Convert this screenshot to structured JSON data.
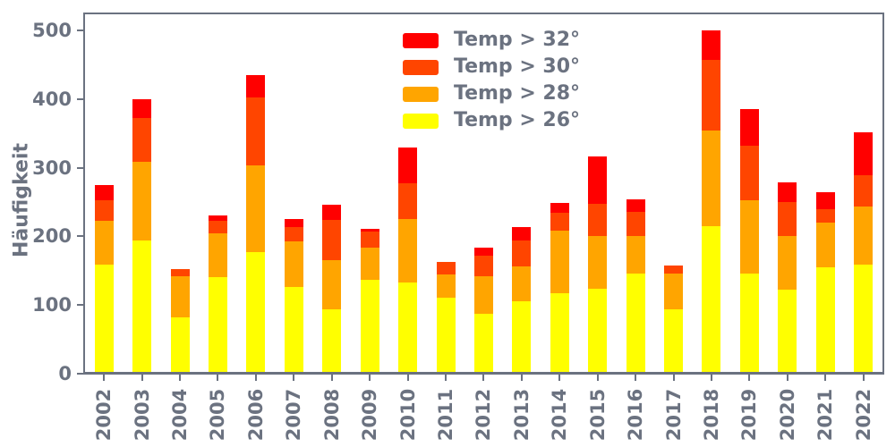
{
  "figure": {
    "background": "#ffffff",
    "axis_color": "#6b7280"
  },
  "chart_data": {
    "type": "bar",
    "stacked": true,
    "title": "",
    "xlabel": "",
    "ylabel": "Häufigkeit",
    "grid": false,
    "ylim": [
      0,
      527
    ],
    "yticks": [
      "0",
      "100",
      "200",
      "300",
      "400",
      "500"
    ],
    "categories": [
      "2002",
      "2003",
      "2004",
      "2005",
      "2006",
      "2007",
      "2008",
      "2009",
      "2010",
      "2011",
      "2012",
      "2013",
      "2014",
      "2015",
      "2016",
      "2017",
      "2018",
      "2019",
      "2020",
      "2021",
      "2022"
    ],
    "series": [
      {
        "name": "Temp > 26°",
        "color": "#ffff00",
        "values": [
          156,
          192,
          80,
          138,
          175,
          124,
          91,
          134,
          130,
          108,
          85,
          103,
          115,
          121,
          143,
          91,
          213,
          144,
          120,
          152,
          157
        ]
      },
      {
        "name": "Temp > 28°",
        "color": "#ffa500",
        "values": [
          65,
          114,
          59,
          64,
          127,
          66,
          72,
          48,
          93,
          34,
          55,
          51,
          91,
          77,
          55,
          53,
          139,
          107,
          78,
          66,
          85
        ]
      },
      {
        "name": "Temp > 30°",
        "color": "#ff4500",
        "values": [
          29,
          64,
          11,
          18,
          98,
          21,
          59,
          23,
          52,
          18,
          30,
          38,
          26,
          47,
          35,
          11,
          103,
          79,
          50,
          19,
          45
        ]
      },
      {
        "name": "Temp > 32°",
        "color": "#ff0000",
        "values": [
          23,
          28,
          0,
          8,
          33,
          12,
          22,
          4,
          52,
          0,
          12,
          20,
          15,
          70,
          19,
          0,
          43,
          53,
          28,
          25,
          63
        ]
      }
    ],
    "stack_totals": [
      273,
      398,
      150,
      228,
      433,
      223,
      244,
      209,
      327,
      160,
      182,
      212,
      247,
      315,
      252,
      155,
      498,
      383,
      276,
      262,
      350
    ],
    "legend": {
      "position": "upper center-left, no frame",
      "items_top_to_bottom": [
        "Temp > 32°",
        "Temp > 30°",
        "Temp > 28°",
        "Temp > 26°"
      ]
    }
  }
}
